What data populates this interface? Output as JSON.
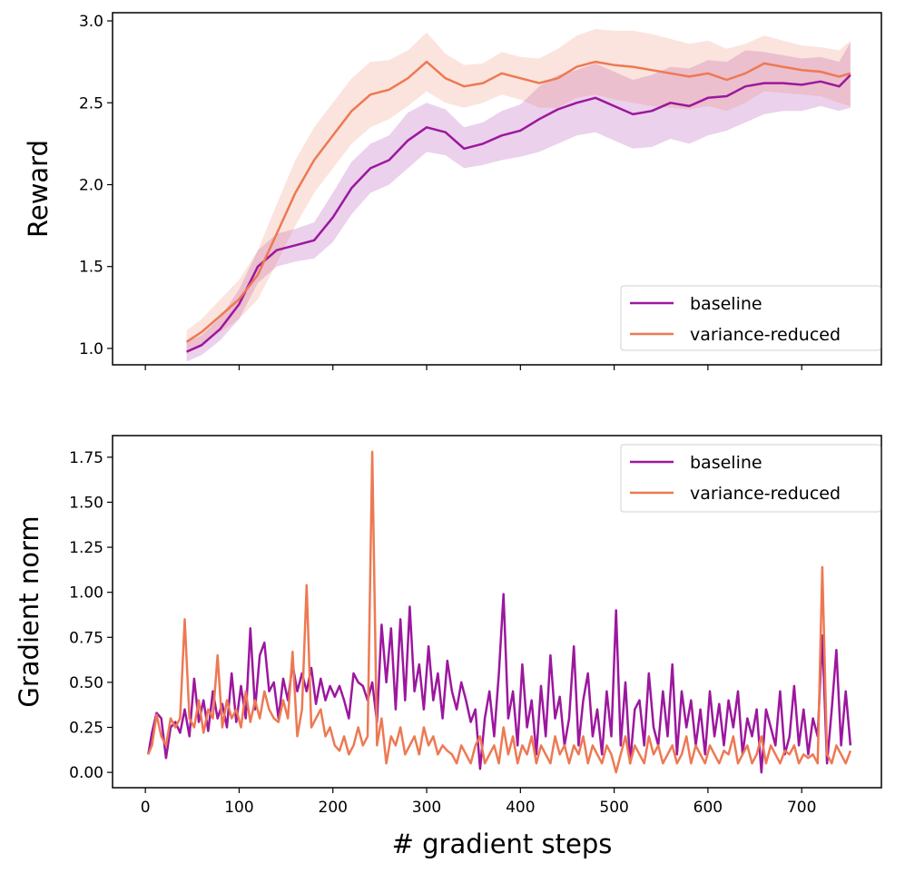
{
  "colors": {
    "baseline": "#9c179e",
    "variance_reduced": "#ed7953"
  },
  "chart_data": [
    {
      "type": "line",
      "ylabel": "Reward",
      "xlabel": "",
      "xlim": [
        -35,
        785
      ],
      "ylim": [
        0.9,
        3.05
      ],
      "yticks": [
        "1.0",
        "1.5",
        "2.0",
        "2.5",
        "3.0"
      ],
      "xticks": [
        0,
        100,
        200,
        300,
        400,
        500,
        600,
        700
      ],
      "show_x_tick_labels": false,
      "legend": {
        "position": "lower-right",
        "entries": [
          "baseline",
          "variance-reduced"
        ]
      },
      "series": [
        {
          "name": "baseline",
          "x": [
            44,
            60,
            80,
            100,
            120,
            140,
            160,
            180,
            200,
            220,
            240,
            260,
            280,
            300,
            320,
            340,
            360,
            380,
            400,
            420,
            440,
            460,
            480,
            500,
            520,
            540,
            560,
            580,
            600,
            620,
            640,
            660,
            680,
            700,
            720,
            740,
            752
          ],
          "y": [
            0.98,
            1.02,
            1.12,
            1.27,
            1.5,
            1.6,
            1.63,
            1.66,
            1.8,
            1.98,
            2.1,
            2.15,
            2.27,
            2.35,
            2.32,
            2.22,
            2.25,
            2.3,
            2.33,
            2.4,
            2.46,
            2.5,
            2.53,
            2.48,
            2.43,
            2.45,
            2.5,
            2.48,
            2.53,
            2.54,
            2.6,
            2.62,
            2.62,
            2.61,
            2.63,
            2.6,
            2.67
          ],
          "lower": [
            0.92,
            0.96,
            1.05,
            1.18,
            1.4,
            1.5,
            1.53,
            1.55,
            1.65,
            1.82,
            1.95,
            2.0,
            2.1,
            2.2,
            2.18,
            2.1,
            2.12,
            2.15,
            2.17,
            2.2,
            2.25,
            2.3,
            2.32,
            2.27,
            2.22,
            2.23,
            2.28,
            2.25,
            2.3,
            2.33,
            2.38,
            2.43,
            2.45,
            2.45,
            2.48,
            2.45,
            2.47
          ],
          "upper": [
            1.04,
            1.08,
            1.19,
            1.36,
            1.6,
            1.7,
            1.73,
            1.77,
            1.95,
            2.14,
            2.25,
            2.3,
            2.44,
            2.5,
            2.46,
            2.35,
            2.38,
            2.45,
            2.49,
            2.6,
            2.67,
            2.7,
            2.74,
            2.69,
            2.64,
            2.67,
            2.72,
            2.71,
            2.76,
            2.75,
            2.82,
            2.81,
            2.79,
            2.77,
            2.78,
            2.75,
            2.87
          ]
        },
        {
          "name": "variance-reduced",
          "x": [
            44,
            60,
            80,
            100,
            120,
            140,
            160,
            180,
            200,
            220,
            240,
            260,
            280,
            300,
            320,
            340,
            360,
            380,
            400,
            420,
            440,
            460,
            480,
            500,
            520,
            540,
            560,
            580,
            600,
            620,
            640,
            660,
            680,
            700,
            720,
            740,
            752
          ],
          "y": [
            1.04,
            1.1,
            1.2,
            1.3,
            1.45,
            1.7,
            1.95,
            2.15,
            2.3,
            2.45,
            2.55,
            2.58,
            2.65,
            2.75,
            2.65,
            2.6,
            2.62,
            2.68,
            2.65,
            2.62,
            2.65,
            2.72,
            2.75,
            2.73,
            2.72,
            2.7,
            2.68,
            2.66,
            2.68,
            2.64,
            2.68,
            2.74,
            2.72,
            2.7,
            2.69,
            2.66,
            2.68
          ],
          "lower": [
            0.97,
            1.02,
            1.1,
            1.18,
            1.3,
            1.52,
            1.75,
            1.95,
            2.1,
            2.25,
            2.35,
            2.4,
            2.48,
            2.57,
            2.5,
            2.47,
            2.5,
            2.55,
            2.52,
            2.47,
            2.47,
            2.53,
            2.55,
            2.52,
            2.5,
            2.48,
            2.47,
            2.46,
            2.48,
            2.45,
            2.5,
            2.57,
            2.56,
            2.55,
            2.54,
            2.5,
            2.48
          ],
          "upper": [
            1.11,
            1.18,
            1.3,
            1.42,
            1.6,
            1.88,
            2.15,
            2.35,
            2.5,
            2.65,
            2.75,
            2.76,
            2.82,
            2.93,
            2.8,
            2.73,
            2.74,
            2.81,
            2.78,
            2.77,
            2.83,
            2.91,
            2.95,
            2.94,
            2.94,
            2.92,
            2.89,
            2.86,
            2.88,
            2.83,
            2.86,
            2.91,
            2.88,
            2.85,
            2.84,
            2.82,
            2.88
          ]
        }
      ]
    },
    {
      "type": "line",
      "ylabel": "Gradient norm",
      "xlabel": "# gradient steps",
      "xlim": [
        -35,
        785
      ],
      "ylim": [
        -0.085,
        1.87
      ],
      "yticks": [
        "0.00",
        "0.25",
        "0.50",
        "0.75",
        "1.00",
        "1.25",
        "1.50",
        "1.75"
      ],
      "xticks": [
        0,
        100,
        200,
        300,
        400,
        500,
        600,
        700
      ],
      "show_x_tick_labels": true,
      "legend": {
        "position": "top-right",
        "entries": [
          "baseline",
          "variance-reduced"
        ]
      },
      "series": [
        {
          "name": "baseline",
          "x": [
            3,
            7,
            12,
            17,
            22,
            27,
            32,
            37,
            42,
            47,
            52,
            57,
            62,
            67,
            72,
            77,
            82,
            87,
            92,
            97,
            102,
            107,
            112,
            117,
            122,
            127,
            132,
            137,
            142,
            147,
            152,
            157,
            162,
            167,
            172,
            177,
            182,
            187,
            192,
            197,
            202,
            207,
            212,
            217,
            222,
            227,
            232,
            237,
            242,
            247,
            252,
            257,
            262,
            267,
            272,
            277,
            282,
            287,
            292,
            297,
            302,
            307,
            312,
            317,
            322,
            327,
            332,
            337,
            342,
            347,
            352,
            357,
            362,
            367,
            372,
            377,
            382,
            387,
            392,
            397,
            402,
            407,
            412,
            417,
            422,
            427,
            432,
            437,
            442,
            447,
            452,
            457,
            462,
            467,
            472,
            477,
            482,
            487,
            492,
            497,
            502,
            507,
            512,
            517,
            522,
            527,
            532,
            537,
            542,
            547,
            552,
            557,
            562,
            567,
            572,
            577,
            582,
            587,
            592,
            597,
            602,
            607,
            612,
            617,
            622,
            627,
            632,
            637,
            642,
            647,
            652,
            657,
            662,
            667,
            672,
            677,
            682,
            687,
            692,
            697,
            702,
            707,
            712,
            717,
            722,
            727,
            732,
            737,
            742,
            747,
            752
          ],
          "y": [
            0.1,
            0.22,
            0.33,
            0.3,
            0.08,
            0.25,
            0.28,
            0.22,
            0.35,
            0.2,
            0.52,
            0.28,
            0.4,
            0.23,
            0.45,
            0.3,
            0.38,
            0.25,
            0.55,
            0.28,
            0.48,
            0.3,
            0.8,
            0.35,
            0.65,
            0.72,
            0.45,
            0.5,
            0.3,
            0.52,
            0.4,
            0.6,
            0.45,
            0.55,
            0.45,
            0.58,
            0.38,
            0.52,
            0.4,
            0.48,
            0.42,
            0.48,
            0.4,
            0.3,
            0.55,
            0.5,
            0.48,
            0.4,
            0.5,
            0.28,
            0.82,
            0.5,
            0.8,
            0.35,
            0.85,
            0.4,
            0.92,
            0.45,
            0.6,
            0.35,
            0.7,
            0.4,
            0.55,
            0.3,
            0.62,
            0.45,
            0.35,
            0.5,
            0.4,
            0.28,
            0.35,
            0.02,
            0.3,
            0.45,
            0.2,
            0.55,
            0.99,
            0.3,
            0.45,
            0.15,
            0.6,
            0.25,
            0.4,
            0.1,
            0.48,
            0.2,
            0.65,
            0.3,
            0.42,
            0.15,
            0.3,
            0.7,
            0.15,
            0.4,
            0.55,
            0.2,
            0.35,
            0.1,
            0.45,
            0.2,
            0.9,
            0.15,
            0.5,
            0.05,
            0.35,
            0.4,
            0.15,
            0.55,
            0.25,
            0.15,
            0.45,
            0.2,
            0.6,
            0.1,
            0.45,
            0.25,
            0.4,
            0.15,
            0.35,
            0.1,
            0.45,
            0.2,
            0.38,
            0.15,
            0.4,
            0.25,
            0.45,
            0.1,
            0.3,
            0.2,
            0.35,
            0.0,
            0.35,
            0.25,
            0.15,
            0.45,
            0.1,
            0.2,
            0.48,
            0.15,
            0.35,
            0.1,
            0.3,
            0.2,
            0.76,
            0.05,
            0.35,
            0.68,
            0.15,
            0.45,
            0.15
          ]
        },
        {
          "name": "variance-reduced",
          "x": [
            3,
            7,
            12,
            17,
            22,
            27,
            32,
            37,
            42,
            47,
            52,
            57,
            62,
            67,
            72,
            77,
            82,
            87,
            92,
            97,
            102,
            107,
            112,
            117,
            122,
            127,
            132,
            137,
            142,
            147,
            152,
            157,
            162,
            167,
            172,
            177,
            182,
            187,
            192,
            197,
            202,
            207,
            212,
            217,
            222,
            227,
            232,
            237,
            242,
            247,
            252,
            257,
            262,
            267,
            272,
            277,
            282,
            287,
            292,
            297,
            302,
            307,
            312,
            317,
            322,
            327,
            332,
            337,
            342,
            347,
            352,
            357,
            362,
            367,
            372,
            377,
            382,
            387,
            392,
            397,
            402,
            407,
            412,
            417,
            422,
            427,
            432,
            437,
            442,
            447,
            452,
            457,
            462,
            467,
            472,
            477,
            482,
            487,
            492,
            497,
            502,
            507,
            512,
            517,
            522,
            527,
            532,
            537,
            542,
            547,
            552,
            557,
            562,
            567,
            572,
            577,
            582,
            587,
            592,
            597,
            602,
            607,
            612,
            617,
            622,
            627,
            632,
            637,
            642,
            647,
            652,
            657,
            662,
            667,
            672,
            677,
            682,
            687,
            692,
            697,
            702,
            707,
            712,
            717,
            722,
            727,
            732,
            737,
            742,
            747,
            752
          ],
          "y": [
            0.1,
            0.15,
            0.32,
            0.2,
            0.15,
            0.3,
            0.25,
            0.3,
            0.85,
            0.3,
            0.25,
            0.4,
            0.22,
            0.35,
            0.3,
            0.65,
            0.25,
            0.4,
            0.3,
            0.35,
            0.25,
            0.45,
            0.28,
            0.4,
            0.3,
            0.45,
            0.35,
            0.3,
            0.28,
            0.4,
            0.3,
            0.67,
            0.2,
            0.35,
            1.04,
            0.25,
            0.3,
            0.35,
            0.2,
            0.25,
            0.15,
            0.12,
            0.2,
            0.1,
            0.15,
            0.25,
            0.15,
            0.2,
            1.78,
            0.15,
            0.3,
            0.05,
            0.2,
            0.15,
            0.25,
            0.1,
            0.15,
            0.2,
            0.1,
            0.25,
            0.15,
            0.2,
            0.1,
            0.15,
            0.12,
            0.1,
            0.05,
            0.15,
            0.1,
            0.05,
            0.15,
            0.2,
            0.05,
            0.1,
            0.15,
            0.05,
            0.25,
            0.1,
            0.2,
            0.05,
            0.15,
            0.1,
            0.2,
            0.05,
            0.15,
            0.1,
            0.05,
            0.2,
            0.1,
            0.15,
            0.05,
            0.15,
            0.1,
            0.2,
            0.05,
            0.15,
            0.1,
            0.05,
            0.15,
            0.1,
            0.0,
            0.1,
            0.2,
            0.05,
            0.15,
            0.1,
            0.05,
            0.2,
            0.1,
            0.15,
            0.05,
            0.1,
            0.15,
            0.05,
            0.1,
            0.2,
            0.05,
            0.15,
            0.1,
            0.05,
            0.15,
            0.1,
            0.05,
            0.12,
            0.1,
            0.2,
            0.05,
            0.1,
            0.15,
            0.05,
            0.1,
            0.2,
            0.05,
            0.15,
            0.1,
            0.05,
            0.12,
            0.1,
            0.15,
            0.05,
            0.1,
            0.08,
            0.1,
            0.05,
            1.14,
            0.1,
            0.05,
            0.15,
            0.1,
            0.05,
            0.12
          ]
        }
      ]
    }
  ]
}
